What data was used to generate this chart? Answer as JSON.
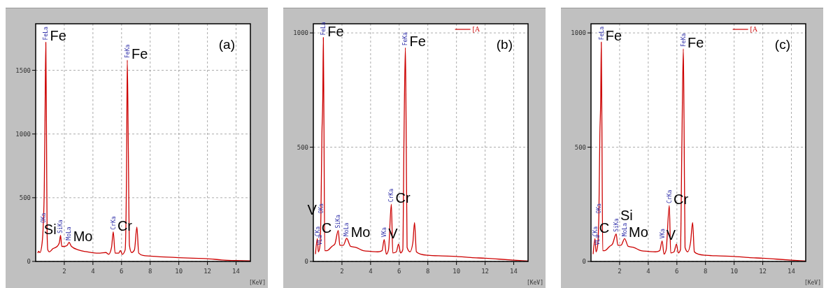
{
  "chart_data": [
    {
      "type": "line",
      "xlabel": "[KeV]",
      "xlim": [
        0,
        15
      ],
      "ylim": [
        0,
        1865
      ],
      "xticks": [
        2,
        4,
        6,
        8,
        10,
        12,
        14
      ],
      "yticks": [
        0,
        500,
        1000,
        1500
      ],
      "grid": true,
      "marker": "none",
      "line_style": "solid",
      "series": [
        {
          "color": "#cc0000",
          "x": [
            0.15,
            0.2,
            0.3,
            0.45,
            0.53,
            0.6,
            0.65,
            0.71,
            0.76,
            0.8,
            0.85,
            0.95,
            1.2,
            1.5,
            1.65,
            1.74,
            1.82,
            2.0,
            2.2,
            2.33,
            2.5,
            3.0,
            3.5,
            4.0,
            4.5,
            4.9,
            5.1,
            5.3,
            5.42,
            5.55,
            5.8,
            5.92,
            6.05,
            6.25,
            6.35,
            6.4,
            6.47,
            6.55,
            6.7,
            6.9,
            7.07,
            7.2,
            7.5,
            8,
            9,
            10,
            11,
            12,
            13,
            14,
            15
          ],
          "values": [
            65,
            80,
            70,
            145,
            285,
            565,
            1090,
            1720,
            920,
            215,
            90,
            75,
            100,
            118,
            145,
            205,
            118,
            118,
            126,
            150,
            118,
            90,
            77,
            68,
            65,
            70,
            56,
            110,
            232,
            65,
            65,
            86,
            56,
            90,
            740,
            1580,
            917,
            126,
            70,
            90,
            270,
            65,
            47,
            42,
            35,
            30,
            25,
            21,
            12,
            7,
            4
          ]
        }
      ],
      "annotations": [
        "(a)",
        {
          "text": "FeLa",
          "x": 0.71,
          "y": 1720
        },
        {
          "text": "FeKa",
          "x": 6.4,
          "y": 1580
        },
        {
          "text": "OKa",
          "x": 0.53,
          "y": 285
        },
        {
          "text": "SiKa",
          "x": 1.74,
          "y": 205
        },
        {
          "text": "MoLa",
          "x": 2.33,
          "y": 150
        },
        {
          "text": "CrKa",
          "x": 5.42,
          "y": 232
        },
        {
          "text": "Fe",
          "x": 0.71,
          "y": 1720
        },
        {
          "text": "Fe",
          "x": 6.4,
          "y": 1580
        },
        {
          "text": "Si",
          "x": 1.74,
          "y": 205
        },
        {
          "text": "Mo",
          "x": 2.33,
          "y": 150
        },
        {
          "text": "Cr",
          "x": 5.42,
          "y": 232
        }
      ]
    },
    {
      "type": "line",
      "xlabel": "[KeV]",
      "xlim": [
        0,
        15
      ],
      "ylim": [
        0,
        1040
      ],
      "xticks": [
        2,
        4,
        6,
        8,
        10,
        12,
        14
      ],
      "yticks": [
        0,
        500,
        1000
      ],
      "grid": true,
      "legend": "top right",
      "marker": "none",
      "line_style": "solid",
      "series": [
        {
          "name": "[A",
          "color": "#cc0000",
          "x": [
            0.15,
            0.28,
            0.35,
            0.45,
            0.53,
            0.6,
            0.66,
            0.7,
            0.74,
            0.8,
            0.95,
            1.3,
            1.5,
            1.74,
            1.85,
            2.1,
            2.33,
            2.6,
            3.0,
            3.5,
            4.0,
            4.5,
            4.8,
            4.95,
            5.1,
            5.25,
            5.45,
            5.55,
            5.8,
            5.95,
            6.1,
            6.25,
            6.33,
            6.43,
            6.48,
            6.55,
            6.75,
            6.95,
            7.07,
            7.2,
            7.5,
            8,
            9,
            10,
            11,
            12,
            13,
            14,
            15
          ],
          "values": [
            32,
            100,
            42,
            62,
            200,
            557,
            715,
            980,
            616,
            47,
            47,
            66,
            76,
            136,
            71,
            71,
            101,
            66,
            61,
            47,
            44,
            42,
            47,
            96,
            32,
            51,
            250,
            37,
            42,
            76,
            37,
            51,
            517,
            935,
            616,
            61,
            42,
            81,
            170,
            42,
            32,
            27,
            24,
            22,
            17,
            14,
            10,
            6,
            2
          ]
        }
      ],
      "annotations": [
        "(b)",
        {
          "text": "FeLa",
          "x": 0.7,
          "y": 980
        },
        {
          "text": "FeKa",
          "x": 6.43,
          "y": 935
        },
        {
          "text": "CKa",
          "x": 0.28,
          "y": 100
        },
        {
          "text": "VLa",
          "x": 0.45,
          "y": 62
        },
        {
          "text": "OKa",
          "x": 0.53,
          "y": 200
        },
        {
          "text": "SiKa",
          "x": 1.74,
          "y": 136
        },
        {
          "text": "MoLa",
          "x": 2.33,
          "y": 101
        },
        {
          "text": "VKa",
          "x": 4.95,
          "y": 96
        },
        {
          "text": "CrKa",
          "x": 5.45,
          "y": 250
        },
        {
          "text": "Fe",
          "x": 0.7,
          "y": 980
        },
        {
          "text": "Fe",
          "x": 6.43,
          "y": 935
        },
        {
          "text": "C",
          "x": 0.28,
          "y": 100
        },
        {
          "text": "V",
          "x": 0.53,
          "y": 200
        },
        {
          "text": "Mo",
          "x": 2.33,
          "y": 101
        },
        {
          "text": "V",
          "x": 4.95,
          "y": 96
        },
        {
          "text": "Cr",
          "x": 5.45,
          "y": 250
        }
      ]
    },
    {
      "type": "line",
      "xlabel": "[KeV]",
      "xlim": [
        0,
        15
      ],
      "ylim": [
        0,
        1040
      ],
      "xticks": [
        2,
        4,
        6,
        8,
        10,
        12,
        14
      ],
      "yticks": [
        0,
        500,
        1000
      ],
      "grid": true,
      "legend": "top right",
      "marker": "none",
      "line_style": "solid",
      "series": [
        {
          "name": "[A",
          "color": "#cc0000",
          "x": [
            0.15,
            0.28,
            0.35,
            0.45,
            0.55,
            0.62,
            0.68,
            0.72,
            0.76,
            0.82,
            0.95,
            1.3,
            1.5,
            1.76,
            1.87,
            2.1,
            2.35,
            2.6,
            3.0,
            3.5,
            4.0,
            4.5,
            4.8,
            4.97,
            5.1,
            5.25,
            5.47,
            5.57,
            5.8,
            5.97,
            6.1,
            6.25,
            6.35,
            6.45,
            6.5,
            6.57,
            6.75,
            6.95,
            7.1,
            7.22,
            7.5,
            8,
            9,
            10,
            11,
            12,
            13,
            14,
            15
          ],
          "values": [
            32,
            100,
            42,
            62,
            200,
            557,
            715,
            960,
            616,
            47,
            47,
            66,
            76,
            120,
            71,
            71,
            100,
            66,
            61,
            47,
            44,
            42,
            47,
            90,
            32,
            51,
            245,
            37,
            42,
            76,
            37,
            51,
            517,
            930,
            616,
            61,
            42,
            81,
            170,
            42,
            32,
            27,
            24,
            22,
            17,
            14,
            10,
            6,
            2
          ]
        }
      ],
      "annotations": [
        "(c)",
        {
          "text": "FeLa",
          "x": 0.72,
          "y": 960
        },
        {
          "text": "FeKa",
          "x": 6.45,
          "y": 930
        },
        {
          "text": "CKa",
          "x": 0.28,
          "y": 100
        },
        {
          "text": "VLa",
          "x": 0.45,
          "y": 62
        },
        {
          "text": "OKa",
          "x": 0.55,
          "y": 200
        },
        {
          "text": "SiKa",
          "x": 1.76,
          "y": 120
        },
        {
          "text": "MoLa",
          "x": 2.35,
          "y": 100
        },
        {
          "text": "VKa",
          "x": 4.97,
          "y": 90
        },
        {
          "text": "CrKa",
          "x": 5.47,
          "y": 245
        },
        {
          "text": "Fe",
          "x": 0.72,
          "y": 960
        },
        {
          "text": "Fe",
          "x": 6.45,
          "y": 930
        },
        {
          "text": "C",
          "x": 0.28,
          "y": 100
        },
        {
          "text": "Si",
          "x": 1.76,
          "y": 120
        },
        {
          "text": "Mo",
          "x": 2.35,
          "y": 100
        },
        {
          "text": "V",
          "x": 4.97,
          "y": 90
        },
        {
          "text": "Cr",
          "x": 5.47,
          "y": 245
        }
      ]
    }
  ]
}
